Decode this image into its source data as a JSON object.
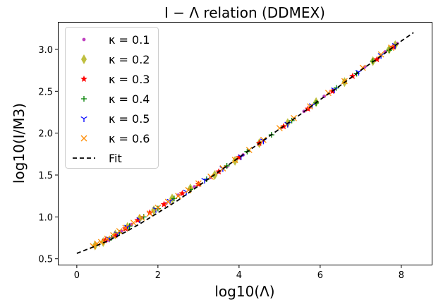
{
  "chart_data": {
    "type": "scatter",
    "title": "I − Λ relation (DDMEX)",
    "xlabel": "log10(Λ)",
    "ylabel": "log10(I/M3)",
    "xlim": [
      -0.45,
      8.75
    ],
    "ylim": [
      0.43,
      3.32
    ],
    "xticks": [
      0,
      2,
      4,
      6,
      8
    ],
    "yticks": [
      0.5,
      1.0,
      1.5,
      2.0,
      2.5,
      3.0
    ],
    "xtick_labels": [
      "0",
      "2",
      "4",
      "6",
      "8"
    ],
    "ytick_labels": [
      "0.5",
      "1.0",
      "1.5",
      "2.0",
      "2.5",
      "3.0"
    ],
    "grid": false,
    "legend_position": "upper-left",
    "series": [
      {
        "name": "κ = 0.1",
        "marker": "dot",
        "color": "#bf3fbf",
        "points": [
          [
            0.75,
            0.72
          ],
          [
            0.9,
            0.76
          ],
          [
            1.1,
            0.83
          ],
          [
            1.35,
            0.91
          ],
          [
            1.6,
            0.99
          ],
          [
            1.9,
            1.07
          ],
          [
            2.2,
            1.16
          ],
          [
            2.5,
            1.26
          ],
          [
            2.9,
            1.36
          ],
          [
            3.3,
            1.47
          ],
          [
            3.7,
            1.6
          ],
          [
            4.1,
            1.74
          ],
          [
            4.6,
            1.91
          ],
          [
            5.1,
            2.08
          ],
          [
            5.6,
            2.26
          ],
          [
            6.1,
            2.44
          ],
          [
            6.6,
            2.62
          ],
          [
            7.1,
            2.79
          ],
          [
            7.6,
            2.97
          ],
          [
            7.9,
            3.07
          ]
        ]
      },
      {
        "name": "κ = 0.2",
        "marker": "diamond",
        "color": "#bfbf3f",
        "points": [
          [
            0.45,
            0.66
          ],
          [
            0.65,
            0.7
          ],
          [
            0.95,
            0.79
          ],
          [
            1.25,
            0.88
          ],
          [
            1.55,
            0.98
          ],
          [
            1.9,
            1.08
          ],
          [
            2.35,
            1.22
          ],
          [
            2.8,
            1.34
          ],
          [
            3.4,
            1.5
          ],
          [
            3.9,
            1.67
          ],
          [
            4.5,
            1.88
          ],
          [
            5.2,
            2.12
          ],
          [
            5.9,
            2.37
          ],
          [
            6.6,
            2.61
          ],
          [
            7.3,
            2.86
          ],
          [
            7.7,
            3.0
          ],
          [
            7.85,
            3.05
          ]
        ]
      },
      {
        "name": "κ = 0.3",
        "marker": "star",
        "color": "#ff0000",
        "points": [
          [
            0.7,
            0.72
          ],
          [
            0.95,
            0.78
          ],
          [
            1.2,
            0.86
          ],
          [
            1.5,
            0.96
          ],
          [
            1.8,
            1.05
          ],
          [
            2.15,
            1.15
          ],
          [
            2.6,
            1.28
          ],
          [
            3.0,
            1.39
          ],
          [
            3.5,
            1.54
          ],
          [
            4.0,
            1.71
          ],
          [
            4.5,
            1.88
          ],
          [
            5.1,
            2.08
          ],
          [
            5.7,
            2.29
          ],
          [
            6.3,
            2.5
          ],
          [
            6.8,
            2.68
          ],
          [
            7.4,
            2.88
          ],
          [
            7.8,
            3.03
          ]
        ]
      },
      {
        "name": "κ = 0.4",
        "marker": "plus",
        "color": "#008000",
        "points": [
          [
            0.85,
            0.75
          ],
          [
            1.05,
            0.81
          ],
          [
            1.3,
            0.89
          ],
          [
            1.65,
            1.0
          ],
          [
            2.0,
            1.1
          ],
          [
            2.4,
            1.22
          ],
          [
            2.8,
            1.33
          ],
          [
            3.2,
            1.45
          ],
          [
            3.7,
            1.61
          ],
          [
            4.2,
            1.78
          ],
          [
            4.8,
            1.98
          ],
          [
            5.3,
            2.15
          ],
          [
            5.9,
            2.36
          ],
          [
            6.4,
            2.54
          ],
          [
            6.9,
            2.71
          ],
          [
            7.3,
            2.86
          ],
          [
            7.7,
            2.99
          ]
        ]
      },
      {
        "name": "κ = 0.5",
        "marker": "tri-down",
        "color": "#0000ff",
        "points": [
          [
            0.8,
            0.74
          ],
          [
            1.0,
            0.8
          ],
          [
            1.25,
            0.88
          ],
          [
            1.55,
            0.97
          ],
          [
            1.95,
            1.09
          ],
          [
            2.3,
            1.19
          ],
          [
            2.7,
            1.3
          ],
          [
            3.15,
            1.44
          ],
          [
            3.6,
            1.58
          ],
          [
            4.05,
            1.72
          ],
          [
            4.6,
            1.91
          ],
          [
            5.2,
            2.11
          ],
          [
            5.8,
            2.33
          ],
          [
            6.35,
            2.52
          ],
          [
            6.95,
            2.73
          ],
          [
            7.5,
            2.93
          ],
          [
            7.85,
            3.05
          ]
        ]
      },
      {
        "name": "κ = 0.6",
        "marker": "x",
        "color": "#ff8c00",
        "points": [
          [
            0.4,
            0.65
          ],
          [
            0.5,
            0.68
          ],
          [
            0.6,
            0.7
          ],
          [
            0.75,
            0.74
          ],
          [
            0.9,
            0.78
          ],
          [
            1.05,
            0.83
          ],
          [
            1.2,
            0.87
          ],
          [
            1.4,
            0.93
          ],
          [
            1.6,
            0.99
          ],
          [
            1.8,
            1.04
          ],
          [
            2.0,
            1.11
          ],
          [
            2.25,
            1.18
          ],
          [
            2.5,
            1.25
          ],
          [
            2.75,
            1.32
          ],
          [
            3.0,
            1.4
          ],
          [
            3.3,
            1.48
          ],
          [
            3.6,
            1.58
          ],
          [
            3.9,
            1.68
          ],
          [
            4.25,
            1.8
          ],
          [
            4.6,
            1.92
          ],
          [
            5.0,
            2.06
          ],
          [
            5.35,
            2.18
          ],
          [
            5.75,
            2.32
          ],
          [
            6.2,
            2.48
          ],
          [
            6.6,
            2.62
          ],
          [
            7.05,
            2.78
          ],
          [
            7.5,
            2.94
          ],
          [
            7.75,
            3.02
          ]
        ]
      },
      {
        "name": "Fit",
        "marker": "dashed-line",
        "color": "#000000",
        "line": [
          [
            0.0,
            0.565
          ],
          [
            0.4,
            0.64
          ],
          [
            0.8,
            0.72
          ],
          [
            1.2,
            0.82
          ],
          [
            1.6,
            0.93
          ],
          [
            2.0,
            1.05
          ],
          [
            2.5,
            1.2
          ],
          [
            3.0,
            1.37
          ],
          [
            3.5,
            1.54
          ],
          [
            4.0,
            1.71
          ],
          [
            4.5,
            1.88
          ],
          [
            5.0,
            2.05
          ],
          [
            5.5,
            2.22
          ],
          [
            6.0,
            2.4
          ],
          [
            6.5,
            2.57
          ],
          [
            7.0,
            2.75
          ],
          [
            7.5,
            2.92
          ],
          [
            8.0,
            3.1
          ],
          [
            8.3,
            3.2
          ]
        ]
      }
    ]
  }
}
